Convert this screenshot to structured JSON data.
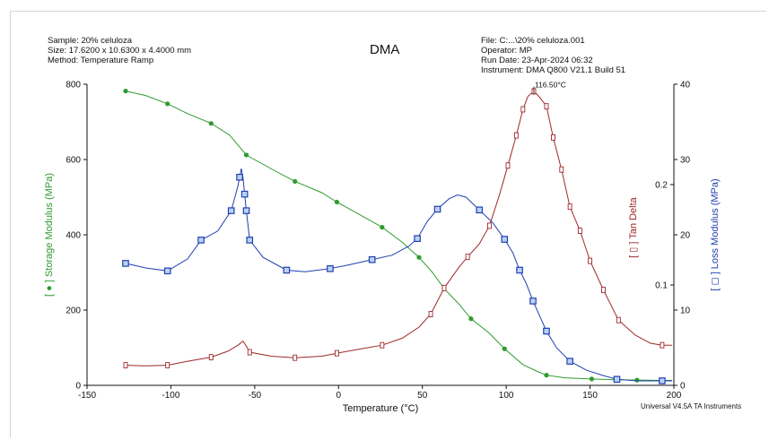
{
  "header_left": {
    "sample": "Sample: 20% celuloza",
    "size": "Size:  17.6200 x 10.6300 x 4.4000 mm",
    "method": "Method: Temperature Ramp"
  },
  "header_right": {
    "file": "File: C:...\\20% celuloza.001",
    "operator": "Operator: MP",
    "run_date": "Run Date: 23-Apr-2024 06:32",
    "instrument": "Instrument: DMA Q800 V21.1 Build 51"
  },
  "title": "DMA",
  "footer": "Universal V4.5A TA Instruments",
  "colors": {
    "storage": "#2e9b2e",
    "tan_delta": "#a02828",
    "loss": "#1f3fb0",
    "axis": "#111111"
  },
  "chart_data": {
    "type": "line",
    "title": "DMA",
    "xlabel": "Temperature (°C)",
    "x_ticks": [
      -150,
      -100,
      -50,
      0,
      50,
      100,
      150,
      200
    ],
    "xlim": [
      -150,
      200
    ],
    "y_left": {
      "label": "[ ● ] Storage Modulus (MPa)",
      "lim": [
        0,
        800
      ],
      "ticks": [
        0,
        200,
        400,
        600,
        800
      ],
      "color": "#2e9b2e"
    },
    "y_tan": {
      "label": "[ ▯ ] Tan Delta",
      "lim": [
        0,
        0.3
      ],
      "ticks": [
        0.1,
        0.2
      ],
      "tick_labels": [
        "0.1",
        "0.2"
      ],
      "color": "#a02828"
    },
    "y_right": {
      "label": "[ ◻ ] Loss Modulus (MPa)",
      "lim": [
        0,
        40
      ],
      "ticks": [
        0,
        10,
        20,
        30,
        40
      ],
      "color": "#1f3fb0"
    },
    "annotation": {
      "text": "116.50°C",
      "x": 116.5,
      "y": 0.295
    },
    "series": [
      {
        "name": "Storage Modulus",
        "axis": "left",
        "marker": "circle",
        "color": "#2e9b2e",
        "points": [
          [
            -127,
            782
          ],
          [
            -115,
            770
          ],
          [
            -102,
            748
          ],
          [
            -90,
            722
          ],
          [
            -76,
            696
          ],
          [
            -65,
            665
          ],
          [
            -55,
            612
          ],
          [
            -40,
            575
          ],
          [
            -26,
            542
          ],
          [
            -10,
            512
          ],
          [
            -1,
            487
          ],
          [
            10,
            460
          ],
          [
            26,
            420
          ],
          [
            38,
            380
          ],
          [
            48,
            340
          ],
          [
            56,
            300
          ],
          [
            63,
            257
          ],
          [
            72,
            215
          ],
          [
            79,
            177
          ],
          [
            90,
            138
          ],
          [
            99,
            97
          ],
          [
            110,
            55
          ],
          [
            118,
            38
          ],
          [
            124,
            27
          ],
          [
            135,
            20
          ],
          [
            151,
            17
          ],
          [
            165,
            15
          ],
          [
            178,
            14
          ],
          [
            193,
            13
          ],
          [
            199,
            13
          ]
        ],
        "markers": [
          -127,
          -102,
          -76,
          -55,
          -26,
          -1,
          26,
          48,
          63,
          79,
          99,
          124,
          151,
          178,
          193
        ]
      },
      {
        "name": "Tan Delta",
        "axis": "tan",
        "marker": "rect",
        "color": "#a02828",
        "points": [
          [
            -127,
            0.02
          ],
          [
            -115,
            0.0195
          ],
          [
            -102,
            0.02
          ],
          [
            -90,
            0.024
          ],
          [
            -76,
            0.028
          ],
          [
            -66,
            0.034
          ],
          [
            -60,
            0.04
          ],
          [
            -57,
            0.044
          ],
          [
            -55,
            0.039
          ],
          [
            -53,
            0.033
          ],
          [
            -40,
            0.029
          ],
          [
            -26,
            0.0275
          ],
          [
            -10,
            0.029
          ],
          [
            -1,
            0.032
          ],
          [
            12,
            0.036
          ],
          [
            26,
            0.04
          ],
          [
            38,
            0.047
          ],
          [
            48,
            0.058
          ],
          [
            55,
            0.071
          ],
          [
            63,
            0.097
          ],
          [
            72,
            0.118
          ],
          [
            77,
            0.128
          ],
          [
            84,
            0.141
          ],
          [
            90,
            0.159
          ],
          [
            96,
            0.19
          ],
          [
            101,
            0.219
          ],
          [
            106,
            0.249
          ],
          [
            110,
            0.275
          ],
          [
            113,
            0.288
          ],
          [
            116.5,
            0.293
          ],
          [
            120,
            0.287
          ],
          [
            124,
            0.278
          ],
          [
            128,
            0.247
          ],
          [
            133,
            0.215
          ],
          [
            138,
            0.178
          ],
          [
            144,
            0.154
          ],
          [
            150,
            0.124
          ],
          [
            158,
            0.095
          ],
          [
            167,
            0.065
          ],
          [
            177,
            0.05
          ],
          [
            186,
            0.042
          ],
          [
            193,
            0.04
          ],
          [
            199,
            0.04
          ]
        ],
        "markers": [
          -127,
          -102,
          -76,
          -53,
          -26,
          -1,
          26,
          55,
          63,
          77,
          90,
          101,
          106,
          110,
          116.5,
          124,
          128,
          133,
          138,
          144,
          150,
          158,
          167,
          193
        ]
      },
      {
        "name": "Loss Modulus",
        "axis": "right",
        "marker": "square",
        "color": "#1f3fb0",
        "points": [
          [
            -127,
            16.2
          ],
          [
            -115,
            15.6
          ],
          [
            -102,
            15.2
          ],
          [
            -90,
            16.8
          ],
          [
            -82,
            19.3
          ],
          [
            -72,
            20.5
          ],
          [
            -64,
            23.2
          ],
          [
            -60,
            26.5
          ],
          [
            -58,
            28.8
          ],
          [
            -57,
            27.6
          ],
          [
            -55,
            23.2
          ],
          [
            -53,
            19.3
          ],
          [
            -45,
            17.0
          ],
          [
            -31,
            15.3
          ],
          [
            -20,
            15.1
          ],
          [
            -5,
            15.5
          ],
          [
            6,
            16.0
          ],
          [
            20,
            16.7
          ],
          [
            32,
            17.3
          ],
          [
            42,
            18.5
          ],
          [
            47,
            19.5
          ],
          [
            53,
            21.8
          ],
          [
            59,
            23.4
          ],
          [
            66,
            24.8
          ],
          [
            71,
            25.3
          ],
          [
            76,
            25.0
          ],
          [
            84,
            23.3
          ],
          [
            92,
            21.6
          ],
          [
            99,
            19.4
          ],
          [
            104,
            17.6
          ],
          [
            108,
            15.3
          ],
          [
            112,
            13.5
          ],
          [
            116,
            11.2
          ],
          [
            120,
            9.2
          ],
          [
            124,
            7.2
          ],
          [
            130,
            5.0
          ],
          [
            138,
            3.2
          ],
          [
            148,
            2.0
          ],
          [
            158,
            1.3
          ],
          [
            166,
            0.8
          ],
          [
            178,
            0.6
          ],
          [
            187,
            0.6
          ],
          [
            193,
            0.6
          ],
          [
            199,
            0.6
          ]
        ],
        "markers": [
          -127,
          -102,
          -82,
          -64,
          -59,
          -56,
          -55,
          -53,
          -31,
          -5,
          20,
          47,
          59,
          84,
          99,
          108,
          116,
          124,
          138,
          166,
          193
        ]
      }
    ]
  }
}
